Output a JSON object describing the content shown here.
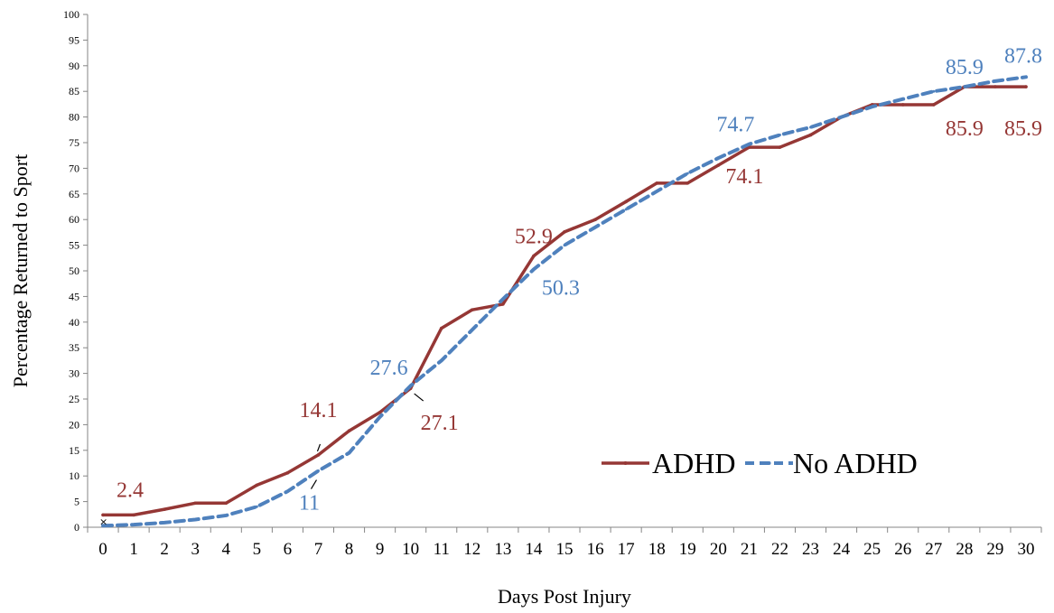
{
  "chart_data": {
    "type": "line",
    "title": "",
    "xlabel": "Days Post Injury",
    "ylabel": "Percentage Returned to Sport",
    "x": [
      0,
      1,
      2,
      3,
      4,
      5,
      6,
      7,
      8,
      9,
      10,
      11,
      12,
      13,
      14,
      15,
      16,
      17,
      18,
      19,
      20,
      21,
      22,
      23,
      24,
      25,
      26,
      27,
      28,
      29,
      30
    ],
    "xlim": [
      0,
      30
    ],
    "ylim": [
      0,
      100
    ],
    "yticks": [
      0,
      5,
      10,
      15,
      20,
      25,
      30,
      35,
      40,
      45,
      50,
      55,
      60,
      65,
      70,
      75,
      80,
      85,
      90,
      95,
      100
    ],
    "grid": false,
    "legend_position": "bottom-right",
    "series": [
      {
        "name": "ADHD",
        "color": "#953735",
        "line_style": "solid",
        "values": [
          2.4,
          2.4,
          3.5,
          4.7,
          4.7,
          8.2,
          10.6,
          14.1,
          18.8,
          22.4,
          27.1,
          38.8,
          42.4,
          43.5,
          52.9,
          57.6,
          60.0,
          63.5,
          67.1,
          67.1,
          70.6,
          74.1,
          74.1,
          76.5,
          80.0,
          82.4,
          82.4,
          82.4,
          85.9,
          85.9,
          85.9
        ]
      },
      {
        "name": "No ADHD",
        "color": "#4f81bd",
        "line_style": "dashed",
        "values": [
          0.3,
          0.5,
          0.9,
          1.5,
          2.3,
          4.0,
          7.0,
          11.0,
          14.5,
          21.5,
          27.6,
          32.5,
          38.5,
          44.5,
          50.3,
          55.0,
          58.5,
          62.0,
          65.5,
          69.0,
          72.0,
          74.7,
          76.5,
          78.0,
          80.0,
          82.0,
          83.5,
          85.0,
          85.9,
          87.0,
          87.8
        ]
      }
    ],
    "annotations": [
      {
        "series": "ADHD",
        "x": 0,
        "y": 2.4,
        "text": "2.4"
      },
      {
        "series": "ADHD",
        "x": 7,
        "y": 14.1,
        "text": "14.1"
      },
      {
        "series": "ADHD",
        "x": 10,
        "y": 27.1,
        "text": "27.1"
      },
      {
        "series": "ADHD",
        "x": 14,
        "y": 52.9,
        "text": "52.9"
      },
      {
        "series": "ADHD",
        "x": 21,
        "y": 74.1,
        "text": "74.1"
      },
      {
        "series": "ADHD",
        "x": 28,
        "y": 85.9,
        "text": "85.9"
      },
      {
        "series": "ADHD",
        "x": 30,
        "y": 85.9,
        "text": "85.9"
      },
      {
        "series": "No ADHD",
        "x": 7,
        "y": 11,
        "text": "11"
      },
      {
        "series": "No ADHD",
        "x": 10,
        "y": 27.6,
        "text": "27.6"
      },
      {
        "series": "No ADHD",
        "x": 14,
        "y": 50.3,
        "text": "50.3"
      },
      {
        "series": "No ADHD",
        "x": 21,
        "y": 74.7,
        "text": "74.7"
      },
      {
        "series": "No ADHD",
        "x": 28,
        "y": 85.9,
        "text": "85.9"
      },
      {
        "series": "No ADHD",
        "x": 30,
        "y": 87.8,
        "text": "87.8"
      }
    ]
  }
}
